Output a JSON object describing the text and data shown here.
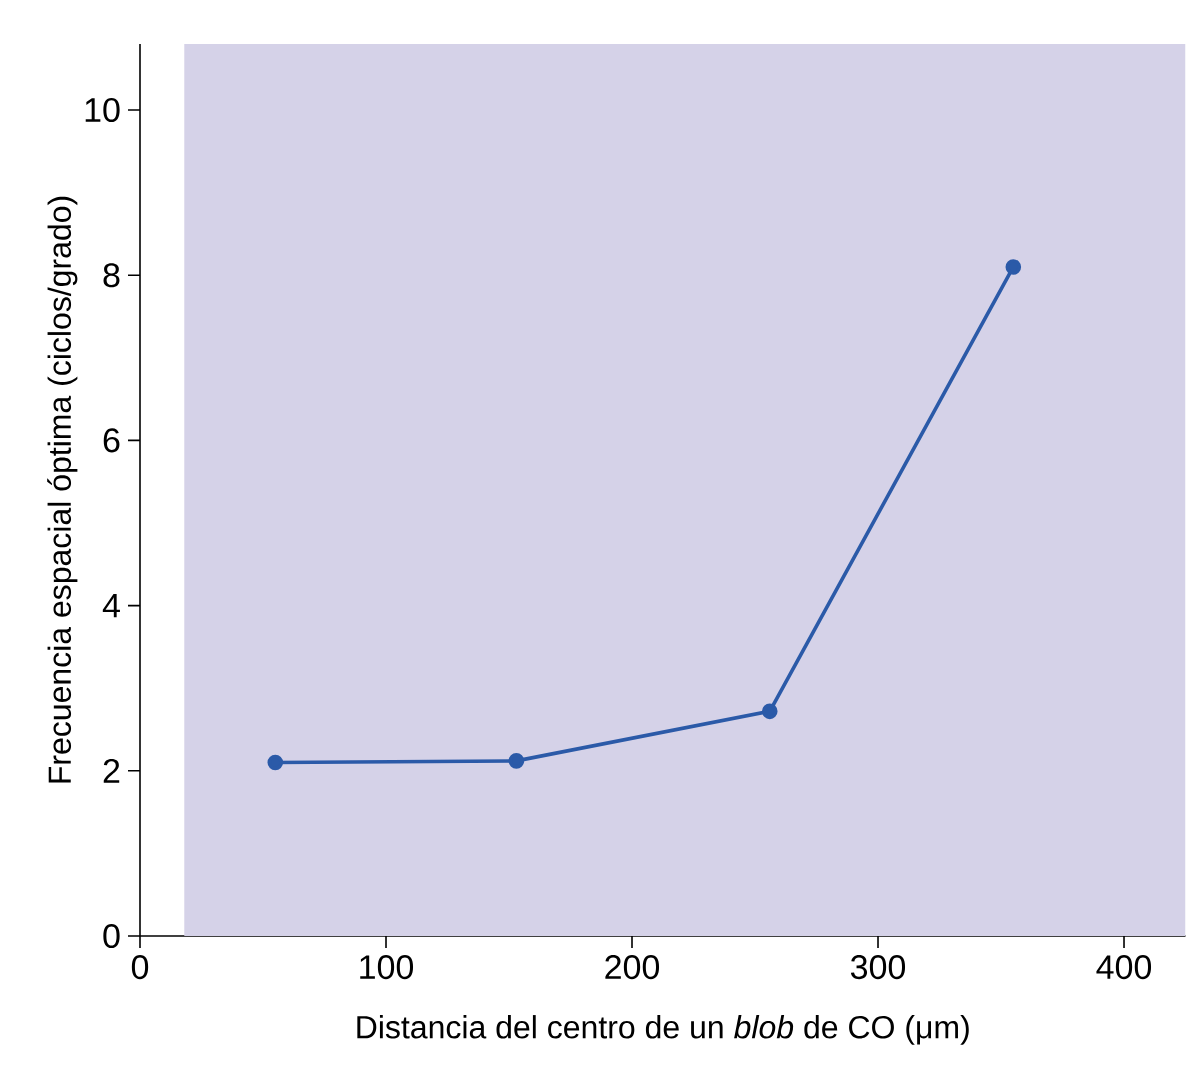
{
  "chart_data": {
    "type": "line",
    "xlabel": "Distancia del centro de un *blob* de CO (μm)",
    "ylabel": "Frecuencia espacial óptima (ciclos/grado)",
    "x": [
      55,
      153,
      256,
      355
    ],
    "series": [
      {
        "color": "#2b5aa8",
        "values": [
          2.1,
          2.12,
          2.72,
          8.1
        ]
      }
    ],
    "xlim": [
      0,
      425
    ],
    "ylim": [
      0,
      10.8
    ],
    "xticks": [
      0,
      100,
      200,
      300,
      400
    ],
    "yticks": [
      0,
      2,
      4,
      6,
      8,
      10
    ],
    "bands": [
      {
        "axis": "x",
        "from": 18,
        "to": 425,
        "color": "#d5d2e8"
      }
    ],
    "marker": "circle",
    "line_style": "solid",
    "grid": false
  }
}
